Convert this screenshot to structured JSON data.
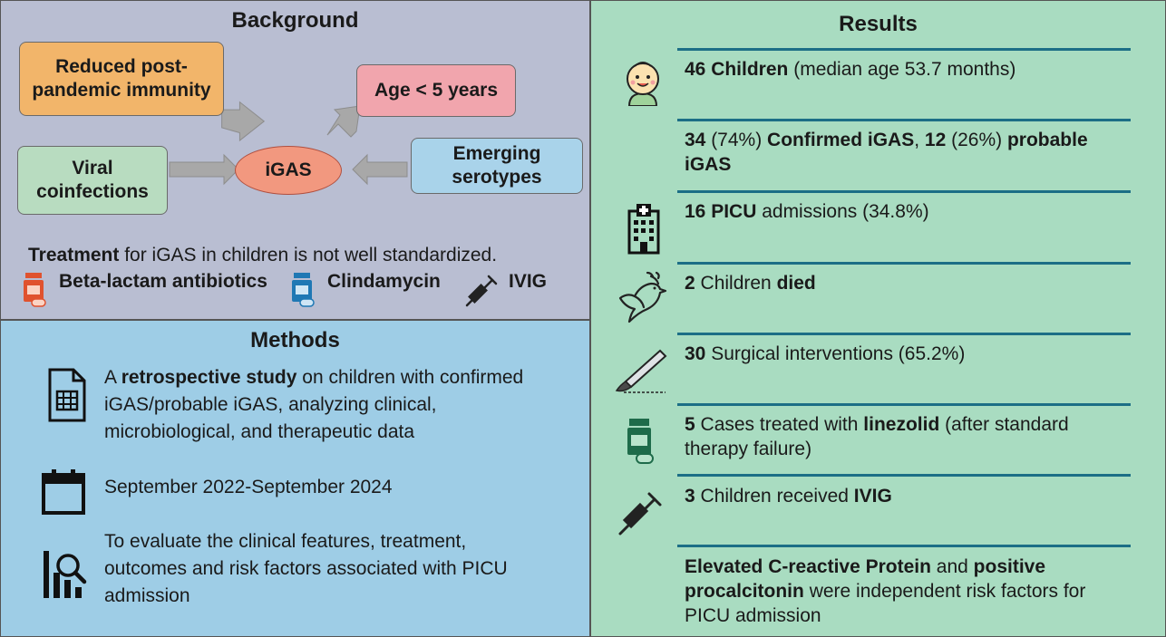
{
  "background": {
    "title": "Background",
    "factors": {
      "immunity": "Reduced post-pandemic immunity",
      "age": "Age < 5 years",
      "viral": "Viral coinfections",
      "serotypes": "Emerging serotypes"
    },
    "center": "iGAS",
    "treatment_bold": "Treatment",
    "treatment_rest": " for iGAS in children is not well standardized.",
    "drugs": [
      "Beta-lactam antibiotics",
      "Clindamycin",
      "IVIG"
    ]
  },
  "methods": {
    "title": "Methods",
    "study_pre": "A ",
    "study_bold": "retrospective study",
    "study_post": " on children with confirmed iGAS/probable iGAS, analyzing clinical, microbiological, and therapeutic data",
    "period": "September 2022-September 2024",
    "aim": "To evaluate the clinical features, treatment, outcomes and risk factors associated with PICU admission"
  },
  "results": {
    "title": "Results",
    "r1": {
      "b1": "46 Children",
      "t1": " (median age 53.7 months)"
    },
    "r2": {
      "b1": "34",
      "t1": " (74%) ",
      "b2": "Confirmed iGAS",
      "t2": ", ",
      "b3": "12",
      "t3": " (26%) ",
      "b4": "probable iGAS"
    },
    "r3": {
      "b1": "16 PICU",
      "t1": " admissions (34.8%)"
    },
    "r4": {
      "b1": "2",
      "t1": " Children ",
      "b2": "died"
    },
    "r5": {
      "b1": "30",
      "t1": " Surgical interventions (65.2%)"
    },
    "r6": {
      "b1": "5",
      "t1": " Cases treated with ",
      "b2": "linezolid",
      "t2": " (after standard therapy failure)"
    },
    "r7": {
      "b1": "3",
      "t1": " Children received ",
      "b2": "IVIG"
    },
    "r8": {
      "b1": "Elevated C-reactive Protein",
      "t1": " and ",
      "b2": "positive procalcitonin",
      "t2": " were independent risk factors for PICU admission"
    }
  },
  "colors": {
    "background_panel": "#b9bed2",
    "methods_panel": "#9ecde6",
    "results_panel": "#a9dcc1",
    "immunity_box": "#f2b56a",
    "age_box": "#f1a5ad",
    "viral_box": "#b8dcc0",
    "serotypes_box": "#a9d3ea",
    "igas_ellipse": "#f2987f",
    "separator": "#1c6e86"
  },
  "icons": [
    "pill-bottle-icon",
    "syringe-icon",
    "document-table-icon",
    "calendar-icon",
    "analysis-icon",
    "baby-face-icon",
    "hospital-icon",
    "dove-icon",
    "scalpel-icon"
  ]
}
